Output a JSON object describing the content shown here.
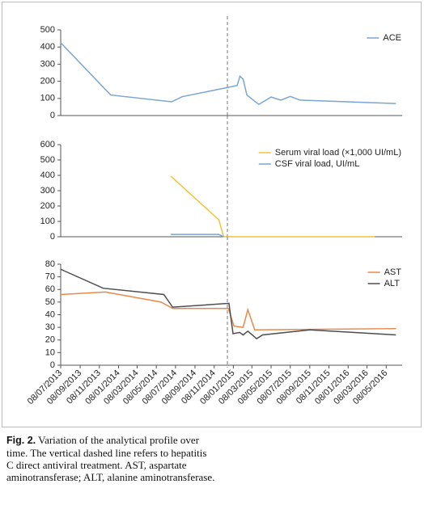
{
  "chart_data": [
    {
      "type": "line",
      "xlim": [
        "08/07/2013",
        "20/06/2016"
      ],
      "ylim": [
        0,
        500
      ],
      "yticks": [
        0,
        100,
        200,
        300,
        400,
        500
      ],
      "vline": "20/12/2014",
      "legend": "upper right",
      "series": [
        {
          "name": "ACE",
          "color": "#7aa6cf",
          "x": [
            "08/07/2013",
            "14/12/2013",
            "26/06/2014",
            "29/07/2014",
            "20/01/2015",
            "29/01/2015",
            "08/02/2015",
            "20/02/2015",
            "30/03/2015",
            "08/05/2015",
            "08/06/2015",
            "08/07/2015",
            "08/08/2015",
            "08/06/2016"
          ],
          "values": [
            425,
            120,
            80,
            110,
            175,
            230,
            212,
            120,
            65,
            108,
            90,
            112,
            90,
            70
          ]
        }
      ]
    },
    {
      "type": "line",
      "xlim": [
        "08/07/2013",
        "20/06/2016"
      ],
      "ylim": [
        0,
        600
      ],
      "yticks": [
        0,
        100,
        200,
        300,
        400,
        500,
        600
      ],
      "vline": "20/12/2014",
      "legend": "upper right",
      "series": [
        {
          "name": "Serum viral load (×1,000 UI/mL)",
          "color": "#f2c23c",
          "x": [
            "23/06/2014",
            "23/11/2014",
            "08/12/2014",
            "02/04/2016"
          ],
          "values": [
            395,
            110,
            0,
            0
          ]
        },
        {
          "name": "CSF viral load, UI/mL",
          "color": "#7aa6cf",
          "x": [
            "23/06/2014",
            "23/11/2014",
            "08/12/2014"
          ],
          "values": [
            15,
            15,
            0
          ]
        }
      ]
    },
    {
      "type": "line",
      "xlim": [
        "08/07/2013",
        "20/06/2016"
      ],
      "ylim": [
        0,
        80
      ],
      "yticks": [
        0,
        10,
        20,
        30,
        40,
        50,
        60,
        70,
        80
      ],
      "vline": "20/12/2014",
      "legend": "upper right",
      "xticks": [
        "08/07/2013",
        "08/09/2013",
        "08/11/2013",
        "08/01/2014",
        "08/03/2014",
        "08/05/2014",
        "08/07/2014",
        "08/09/2014",
        "08/11/2014",
        "08/01/2015",
        "08/03/2015",
        "08/05/2015",
        "08/07/2015",
        "08/09/2015",
        "08/11/2015",
        "08/01/2016",
        "08/03/2016",
        "08/05/2016"
      ],
      "series": [
        {
          "name": "AST",
          "color": "#e8894a",
          "x": [
            "08/07/2013",
            "27/11/2013",
            "23/05/2014",
            "29/06/2014",
            "23/12/2014",
            "10/01/2015",
            "08/02/2015",
            "23/02/2015",
            "17/03/2015",
            "08/06/2016"
          ],
          "values": [
            56,
            58,
            50,
            45,
            45,
            31,
            30,
            44,
            28,
            29
          ]
        },
        {
          "name": "ALT",
          "color": "#4d4d4d",
          "x": [
            "08/07/2013",
            "20/11/2013",
            "01/06/2014",
            "29/06/2014",
            "25/12/2014",
            "07/01/2015",
            "28/01/2015",
            "08/02/2015",
            "23/02/2015",
            "23/03/2015",
            "11/04/2015",
            "08/09/2015",
            "08/06/2016"
          ],
          "values": [
            76,
            61,
            56,
            46,
            49,
            25,
            26,
            24,
            27,
            21,
            24,
            28,
            24
          ]
        }
      ]
    }
  ],
  "caption": {
    "label": "Fig. 2.",
    "text": "Variation of the analytical profile over time. The vertical dashed line refers to hepatitis C direct antiviral treatment. AST, aspartate aminotransferase; ALT, alanine aminotransferase."
  }
}
